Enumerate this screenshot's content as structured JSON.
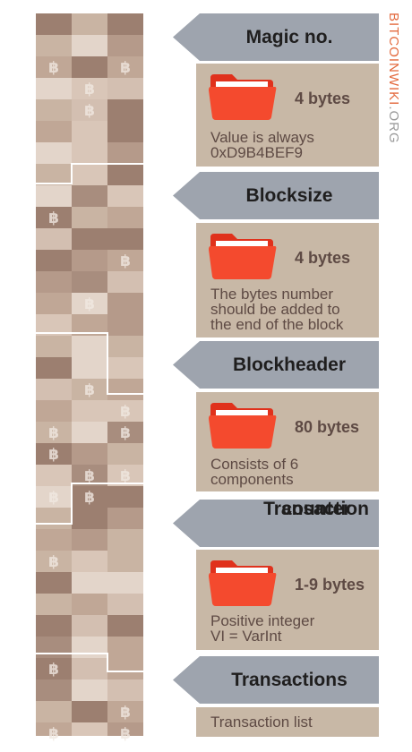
{
  "brand": {
    "part1": "BITCOINWIKI",
    "part2": ".ORG"
  },
  "colors": {
    "arrow": "#9ea4ae",
    "card": "#c8b8a6",
    "folder": "#f44a2e",
    "text": "#5e4a44",
    "brand_accent": "#e36a3e"
  },
  "sections": [
    {
      "title": "Magic no.",
      "bytes": "4 bytes",
      "desc": [
        "Value is always",
        "0xD9B4BEF9"
      ],
      "icon": "folder-icon"
    },
    {
      "title": "Blocksize",
      "bytes": "4 bytes",
      "desc": [
        "The bytes number",
        "should be added to",
        "the end of the block"
      ],
      "icon": "folder-icon"
    },
    {
      "title": "Blockheader",
      "bytes": "80 bytes",
      "desc": [
        "Consists of 6",
        "components"
      ],
      "icon": "folder-icon"
    },
    {
      "title": "Transaction counter",
      "title_lines": [
        "Transaction",
        "counter"
      ],
      "bytes": "1-9 bytes",
      "desc": [
        "Positive integer",
        "VI = VarInt"
      ],
      "icon": "folder-icon"
    },
    {
      "title": "Transactions",
      "desc": [
        "Transaction list"
      ]
    }
  ]
}
